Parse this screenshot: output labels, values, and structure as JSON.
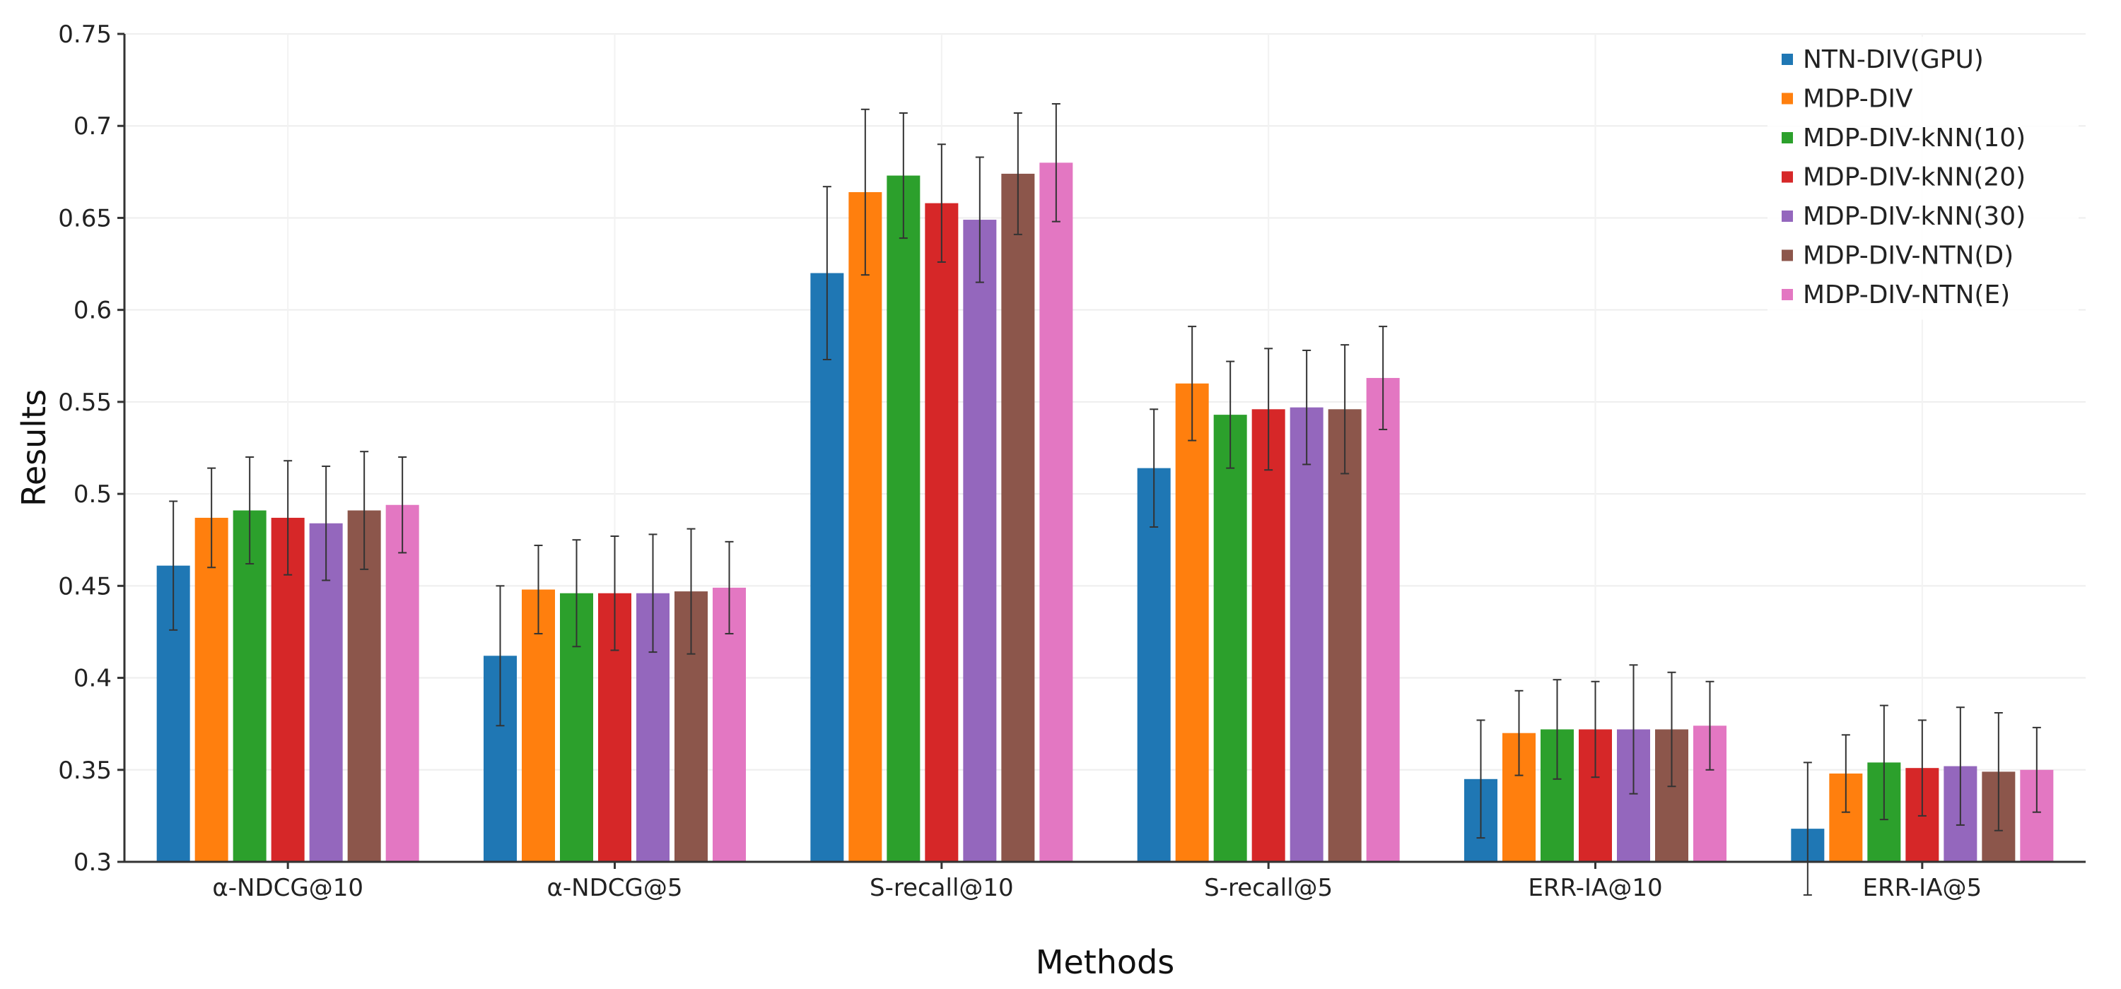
{
  "chart_data": {
    "type": "bar",
    "title": "",
    "xlabel": "Methods",
    "ylabel": "Results",
    "ylim": [
      0.3,
      0.75
    ],
    "yticks": [
      0.3,
      0.35,
      0.4,
      0.45,
      0.5,
      0.55,
      0.6,
      0.65,
      0.7,
      0.75
    ],
    "ytick_labels": [
      "0.3",
      "0.35",
      "0.4",
      "0.45",
      "0.5",
      "0.55",
      "0.6",
      "0.65",
      "0.7",
      "0.75"
    ],
    "grid": true,
    "legend_position": "top-right",
    "categories": [
      "α-NDCG@10",
      "α-NDCG@5",
      "S-recall@10",
      "S-recall@5",
      "ERR-IA@10",
      "ERR-IA@5"
    ],
    "series": [
      {
        "name": "NTN-DIV(GPU)",
        "color": "#1f77b4",
        "values": [
          0.461,
          0.412,
          0.62,
          0.514,
          0.345,
          0.318
        ],
        "errors": [
          0.035,
          0.038,
          0.047,
          0.032,
          0.032,
          0.036
        ]
      },
      {
        "name": "MDP-DIV",
        "color": "#ff7f0e",
        "values": [
          0.487,
          0.448,
          0.664,
          0.56,
          0.37,
          0.348
        ],
        "errors": [
          0.027,
          0.024,
          0.045,
          0.031,
          0.023,
          0.021
        ]
      },
      {
        "name": "MDP-DIV-kNN(10)",
        "color": "#2ca02c",
        "values": [
          0.491,
          0.446,
          0.673,
          0.543,
          0.372,
          0.354
        ],
        "errors": [
          0.029,
          0.029,
          0.034,
          0.029,
          0.027,
          0.031
        ]
      },
      {
        "name": "MDP-DIV-kNN(20)",
        "color": "#d62728",
        "values": [
          0.487,
          0.446,
          0.658,
          0.546,
          0.372,
          0.351
        ],
        "errors": [
          0.031,
          0.031,
          0.032,
          0.033,
          0.026,
          0.026
        ]
      },
      {
        "name": "MDP-DIV-kNN(30)",
        "color": "#9467bd",
        "values": [
          0.484,
          0.446,
          0.649,
          0.547,
          0.372,
          0.352
        ],
        "errors": [
          0.031,
          0.032,
          0.034,
          0.031,
          0.035,
          0.032
        ]
      },
      {
        "name": "MDP-DIV-NTN(D)",
        "color": "#8c564b",
        "values": [
          0.491,
          0.447,
          0.674,
          0.546,
          0.372,
          0.349
        ],
        "errors": [
          0.032,
          0.034,
          0.033,
          0.035,
          0.031,
          0.032
        ]
      },
      {
        "name": "MDP-DIV-NTN(E)",
        "color": "#e377c2",
        "values": [
          0.494,
          0.449,
          0.68,
          0.563,
          0.374,
          0.35
        ],
        "errors": [
          0.026,
          0.025,
          0.032,
          0.028,
          0.024,
          0.023
        ]
      }
    ]
  }
}
